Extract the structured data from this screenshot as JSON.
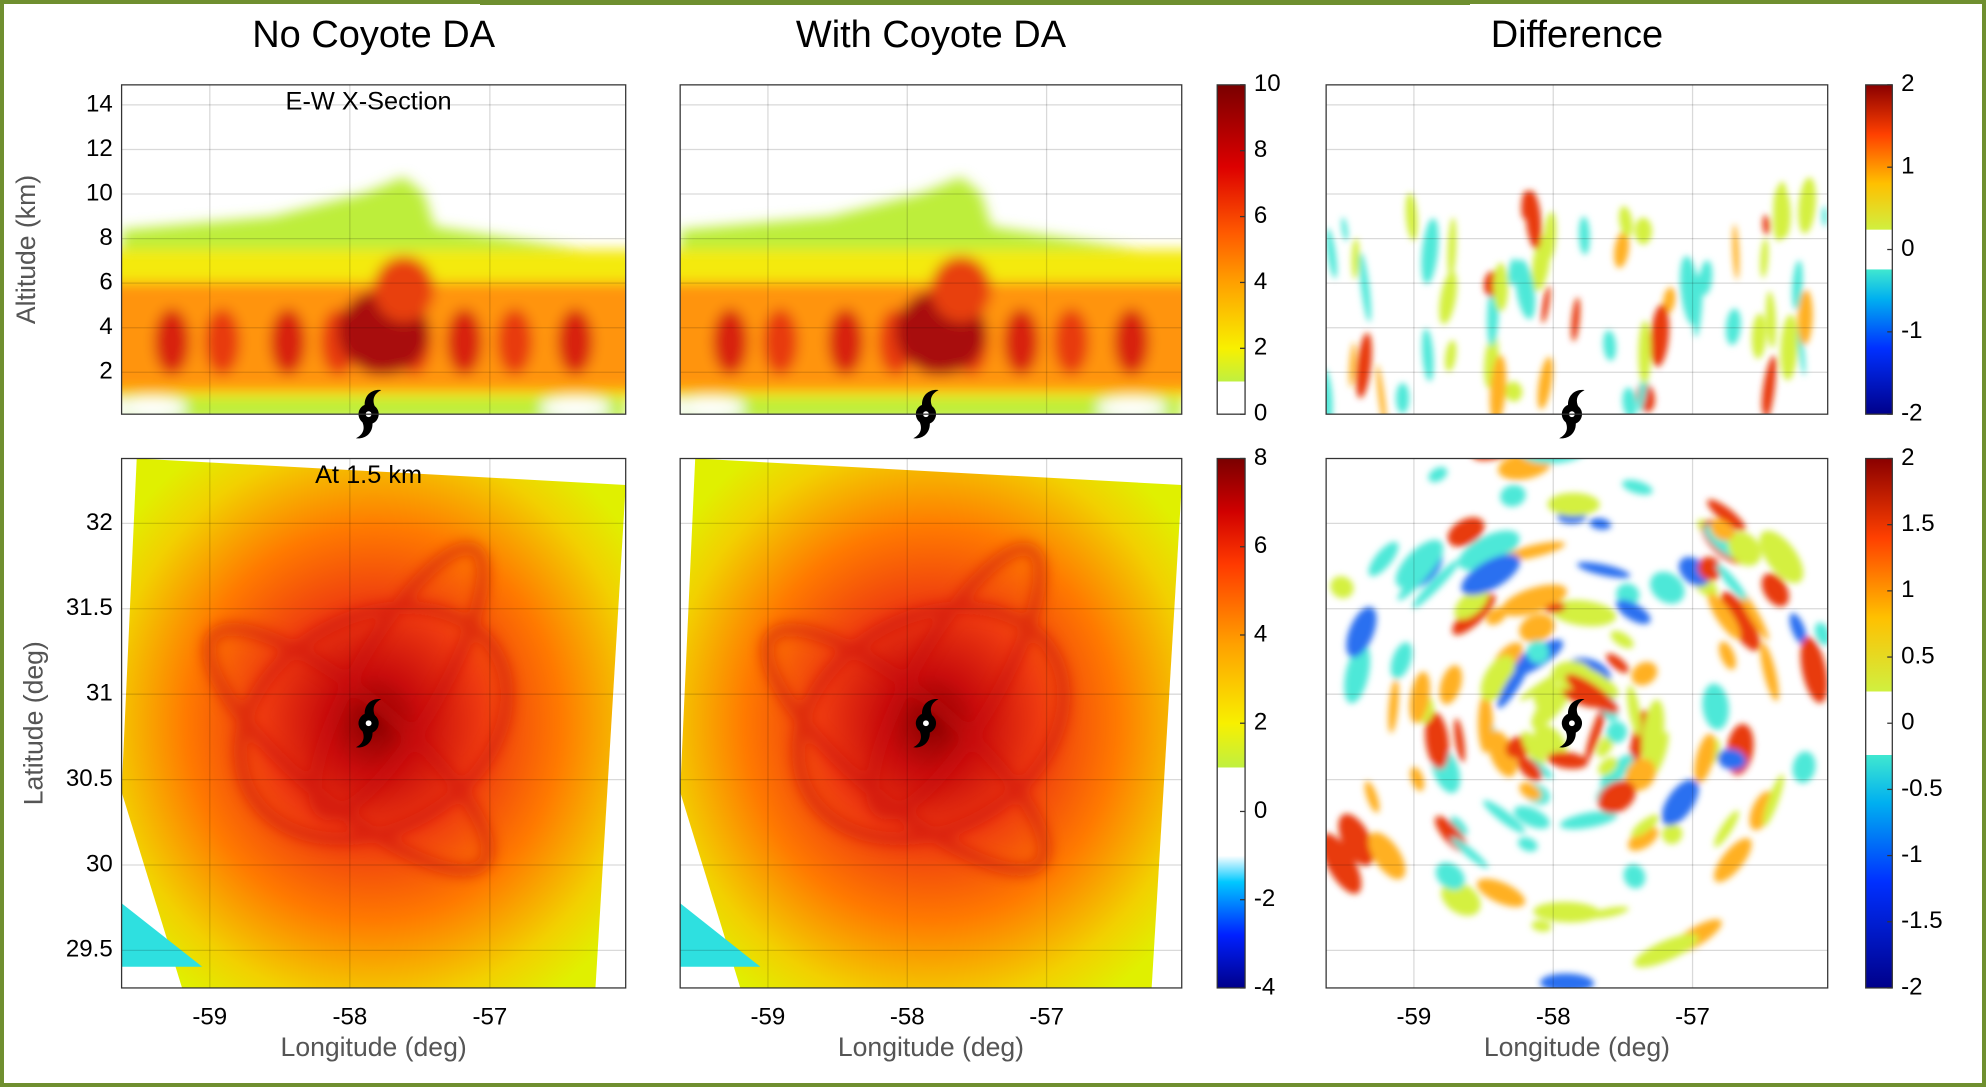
{
  "chart_data": [
    {
      "type": "contour",
      "title": "No Coyote DA",
      "annotation": "E-W X-Section",
      "ylabel": "Altitude (km)",
      "xlim": [
        -59.63,
        -56.03
      ],
      "xticks": [
        -59,
        -58,
        -57
      ],
      "ylim": [
        0.12,
        14.9
      ],
      "yticks": [
        2,
        4,
        6,
        8,
        10,
        12,
        14
      ],
      "grid": true,
      "x_tick_labels": false,
      "y_tick_labels": true
    },
    {
      "type": "contour",
      "title": "With Coyote DA",
      "xlim": [
        -59.63,
        -56.03
      ],
      "xticks": [
        -59,
        -58,
        -57
      ],
      "ylim": [
        0.12,
        14.9
      ],
      "yticks": [
        2,
        4,
        6,
        8,
        10,
        12,
        14
      ],
      "grid": true,
      "x_tick_labels": false,
      "y_tick_labels": false,
      "colorbar": {
        "lim": [
          0,
          10
        ],
        "ticks": [
          0,
          2,
          4,
          6,
          8,
          10
        ]
      }
    },
    {
      "type": "difference",
      "title": "Difference",
      "xlim": [
        -59.63,
        -56.03
      ],
      "xticks": [
        -59,
        -58,
        -57
      ],
      "ylim": [
        0.12,
        14.9
      ],
      "yticks": [
        2,
        4,
        6,
        8,
        10,
        12,
        14
      ],
      "grid": true,
      "x_tick_labels": false,
      "y_tick_labels": false,
      "colorbar": {
        "lim": [
          -2,
          2
        ],
        "ticks": [
          -2,
          -1,
          0,
          1,
          2
        ]
      }
    },
    {
      "type": "contour",
      "annotation": "At 1.5 km",
      "xlabel": "Longitude (deg)",
      "ylabel": "Latitude (deg)",
      "xlim": [
        -59.63,
        -56.03
      ],
      "xticks": [
        -59,
        -58,
        -57
      ],
      "ylim": [
        29.28,
        32.38
      ],
      "yticks": [
        29.5,
        30,
        30.5,
        31,
        31.5,
        32
      ],
      "grid": true,
      "x_tick_labels": true,
      "y_tick_labels": true
    },
    {
      "type": "contour",
      "xlabel": "Longitude (deg)",
      "xlim": [
        -59.63,
        -56.03
      ],
      "xticks": [
        -59,
        -58,
        -57
      ],
      "ylim": [
        29.28,
        32.38
      ],
      "yticks": [
        29.5,
        30,
        30.5,
        31,
        31.5,
        32
      ],
      "grid": true,
      "x_tick_labels": true,
      "y_tick_labels": false,
      "colorbar": {
        "lim": [
          -4,
          8
        ],
        "ticks": [
          -4,
          -2,
          0,
          2,
          4,
          6,
          8
        ]
      }
    },
    {
      "type": "difference",
      "xlabel": "Longitude (deg)",
      "xlim": [
        -59.63,
        -56.03
      ],
      "xticks": [
        -59,
        -58,
        -57
      ],
      "ylim": [
        29.28,
        32.38
      ],
      "yticks": [
        29.5,
        30,
        30.5,
        31,
        31.5,
        32
      ],
      "grid": true,
      "x_tick_labels": true,
      "y_tick_labels": false,
      "colorbar": {
        "lim": [
          -2,
          2
        ],
        "ticks": [
          -2,
          -1.5,
          -1,
          -0.5,
          0,
          0.5,
          1,
          1.5,
          2
        ]
      }
    }
  ]
}
